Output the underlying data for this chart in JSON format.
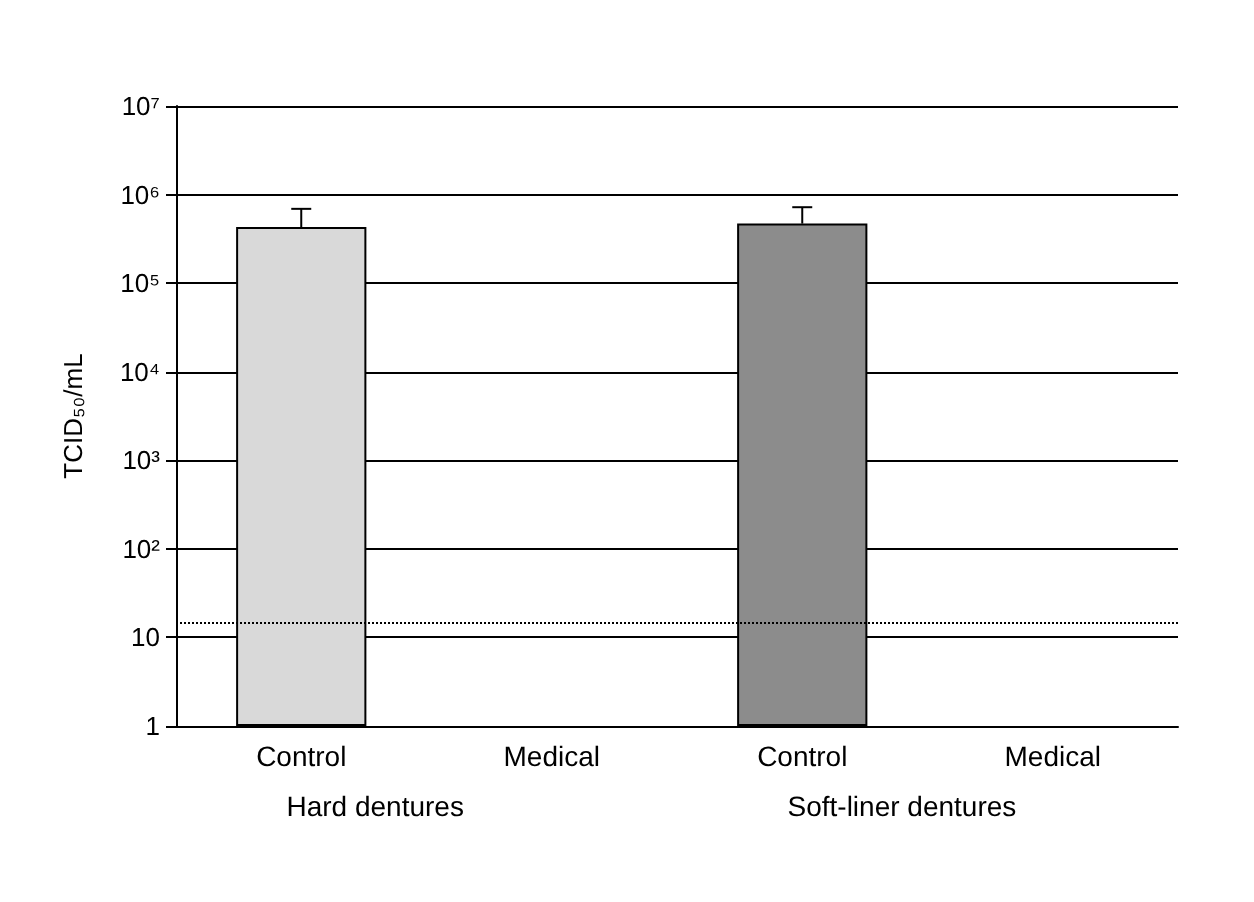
{
  "chart_data": {
    "type": "bar",
    "ylabel": "TCID₅₀/mL",
    "categories": [
      "Control",
      "Medical",
      "Control",
      "Medical"
    ],
    "values": [
      430000,
      null,
      470000,
      null
    ],
    "colors": [
      "#d9d9d9",
      null,
      "#8c8c8c",
      null
    ],
    "errors": [
      [
        430000,
        690000
      ],
      null,
      [
        470000,
        720000
      ],
      null
    ],
    "log": true,
    "ylim": [
      1,
      10000000
    ],
    "yticks": [
      1,
      10,
      {
        "value": 100,
        "label": "10²"
      },
      {
        "value": 1000,
        "label": "10³"
      },
      {
        "value": 10000,
        "label": "10⁴"
      },
      {
        "value": 100000,
        "label": "10⁵"
      },
      {
        "value": 1000000,
        "label": "10⁶"
      },
      {
        "value": 10000000,
        "label": "10⁷"
      }
    ],
    "grid": "y",
    "ref_lines": [
      {
        "axis": "y",
        "value": 15,
        "line_style": "dotted",
        "color": "#000000"
      }
    ],
    "annotations": [
      "Hard dentures",
      "Soft-liner dentures"
    ]
  }
}
